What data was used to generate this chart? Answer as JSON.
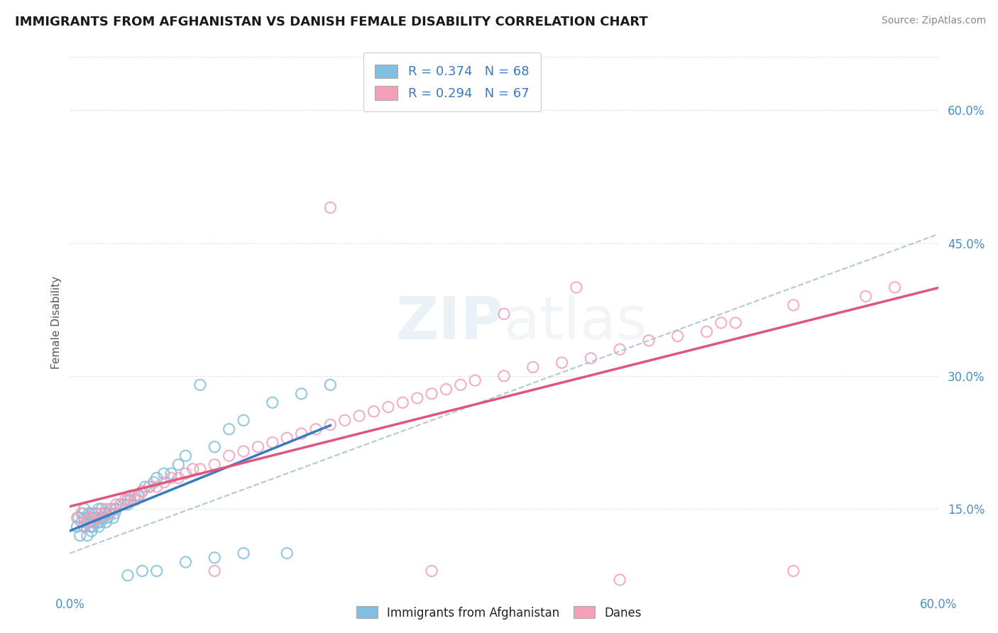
{
  "title": "IMMIGRANTS FROM AFGHANISTAN VS DANISH FEMALE DISABILITY CORRELATION CHART",
  "source": "Source: ZipAtlas.com",
  "ylabel": "Female Disability",
  "color_blue": "#7fbfdf",
  "color_pink": "#f4a0b8",
  "trendline_blue": "#3a7abf",
  "trendline_pink": "#e05580",
  "trendline_dashed": "#b0c8d8",
  "background": "#ffffff",
  "grid_color": "#e0e8f0",
  "xlim": [
    0.0,
    0.6
  ],
  "ylim": [
    0.06,
    0.66
  ],
  "yticks": [
    0.15,
    0.3,
    0.45,
    0.6
  ],
  "ytick_labels": [
    "15.0%",
    "30.0%",
    "45.0%",
    "60.0%"
  ],
  "legend_labels": [
    "R = 0.374   N = 68",
    "R = 0.294   N = 67"
  ],
  "bottom_legend": [
    "Immigrants from Afghanistan",
    "Danes"
  ],
  "watermark": "ZIPAtlas",
  "blue_x": [
    0.005,
    0.006,
    0.007,
    0.008,
    0.009,
    0.01,
    0.01,
    0.01,
    0.012,
    0.012,
    0.013,
    0.013,
    0.014,
    0.015,
    0.015,
    0.015,
    0.016,
    0.016,
    0.017,
    0.018,
    0.018,
    0.019,
    0.02,
    0.02,
    0.02,
    0.021,
    0.022,
    0.022,
    0.023,
    0.024,
    0.025,
    0.025,
    0.026,
    0.027,
    0.028,
    0.03,
    0.031,
    0.032,
    0.035,
    0.037,
    0.04,
    0.04,
    0.042,
    0.045,
    0.047,
    0.05,
    0.052,
    0.055,
    0.058,
    0.06,
    0.065,
    0.07,
    0.075,
    0.08,
    0.09,
    0.1,
    0.11,
    0.12,
    0.14,
    0.16,
    0.18,
    0.05,
    0.08,
    0.1,
    0.12,
    0.15,
    0.06,
    0.04
  ],
  "blue_y": [
    0.13,
    0.14,
    0.12,
    0.135,
    0.145,
    0.13,
    0.14,
    0.15,
    0.12,
    0.135,
    0.14,
    0.145,
    0.13,
    0.125,
    0.135,
    0.145,
    0.13,
    0.14,
    0.135,
    0.14,
    0.145,
    0.135,
    0.13,
    0.14,
    0.15,
    0.135,
    0.14,
    0.15,
    0.14,
    0.145,
    0.135,
    0.145,
    0.14,
    0.145,
    0.15,
    0.14,
    0.145,
    0.15,
    0.155,
    0.155,
    0.16,
    0.155,
    0.16,
    0.165,
    0.165,
    0.17,
    0.175,
    0.175,
    0.18,
    0.185,
    0.19,
    0.19,
    0.2,
    0.21,
    0.29,
    0.22,
    0.24,
    0.25,
    0.27,
    0.28,
    0.29,
    0.08,
    0.09,
    0.095,
    0.1,
    0.1,
    0.08,
    0.075
  ],
  "pink_x": [
    0.005,
    0.008,
    0.01,
    0.012,
    0.014,
    0.016,
    0.018,
    0.02,
    0.022,
    0.025,
    0.028,
    0.03,
    0.032,
    0.035,
    0.038,
    0.04,
    0.042,
    0.045,
    0.048,
    0.05,
    0.055,
    0.06,
    0.065,
    0.07,
    0.075,
    0.08,
    0.085,
    0.09,
    0.1,
    0.11,
    0.12,
    0.13,
    0.14,
    0.15,
    0.16,
    0.17,
    0.18,
    0.19,
    0.2,
    0.21,
    0.22,
    0.23,
    0.24,
    0.25,
    0.26,
    0.27,
    0.28,
    0.3,
    0.32,
    0.34,
    0.36,
    0.38,
    0.4,
    0.42,
    0.44,
    0.46,
    0.5,
    0.55,
    0.57,
    0.3,
    0.35,
    0.45,
    0.18,
    0.5,
    0.25,
    0.38,
    0.1
  ],
  "pink_y": [
    0.14,
    0.145,
    0.13,
    0.135,
    0.14,
    0.135,
    0.145,
    0.14,
    0.145,
    0.15,
    0.145,
    0.15,
    0.155,
    0.155,
    0.16,
    0.16,
    0.165,
    0.16,
    0.165,
    0.17,
    0.175,
    0.175,
    0.18,
    0.185,
    0.185,
    0.19,
    0.195,
    0.195,
    0.2,
    0.21,
    0.215,
    0.22,
    0.225,
    0.23,
    0.235,
    0.24,
    0.245,
    0.25,
    0.255,
    0.26,
    0.265,
    0.27,
    0.275,
    0.28,
    0.285,
    0.29,
    0.295,
    0.3,
    0.31,
    0.315,
    0.32,
    0.33,
    0.34,
    0.345,
    0.35,
    0.36,
    0.38,
    0.39,
    0.4,
    0.37,
    0.4,
    0.36,
    0.49,
    0.08,
    0.08,
    0.07,
    0.08
  ]
}
